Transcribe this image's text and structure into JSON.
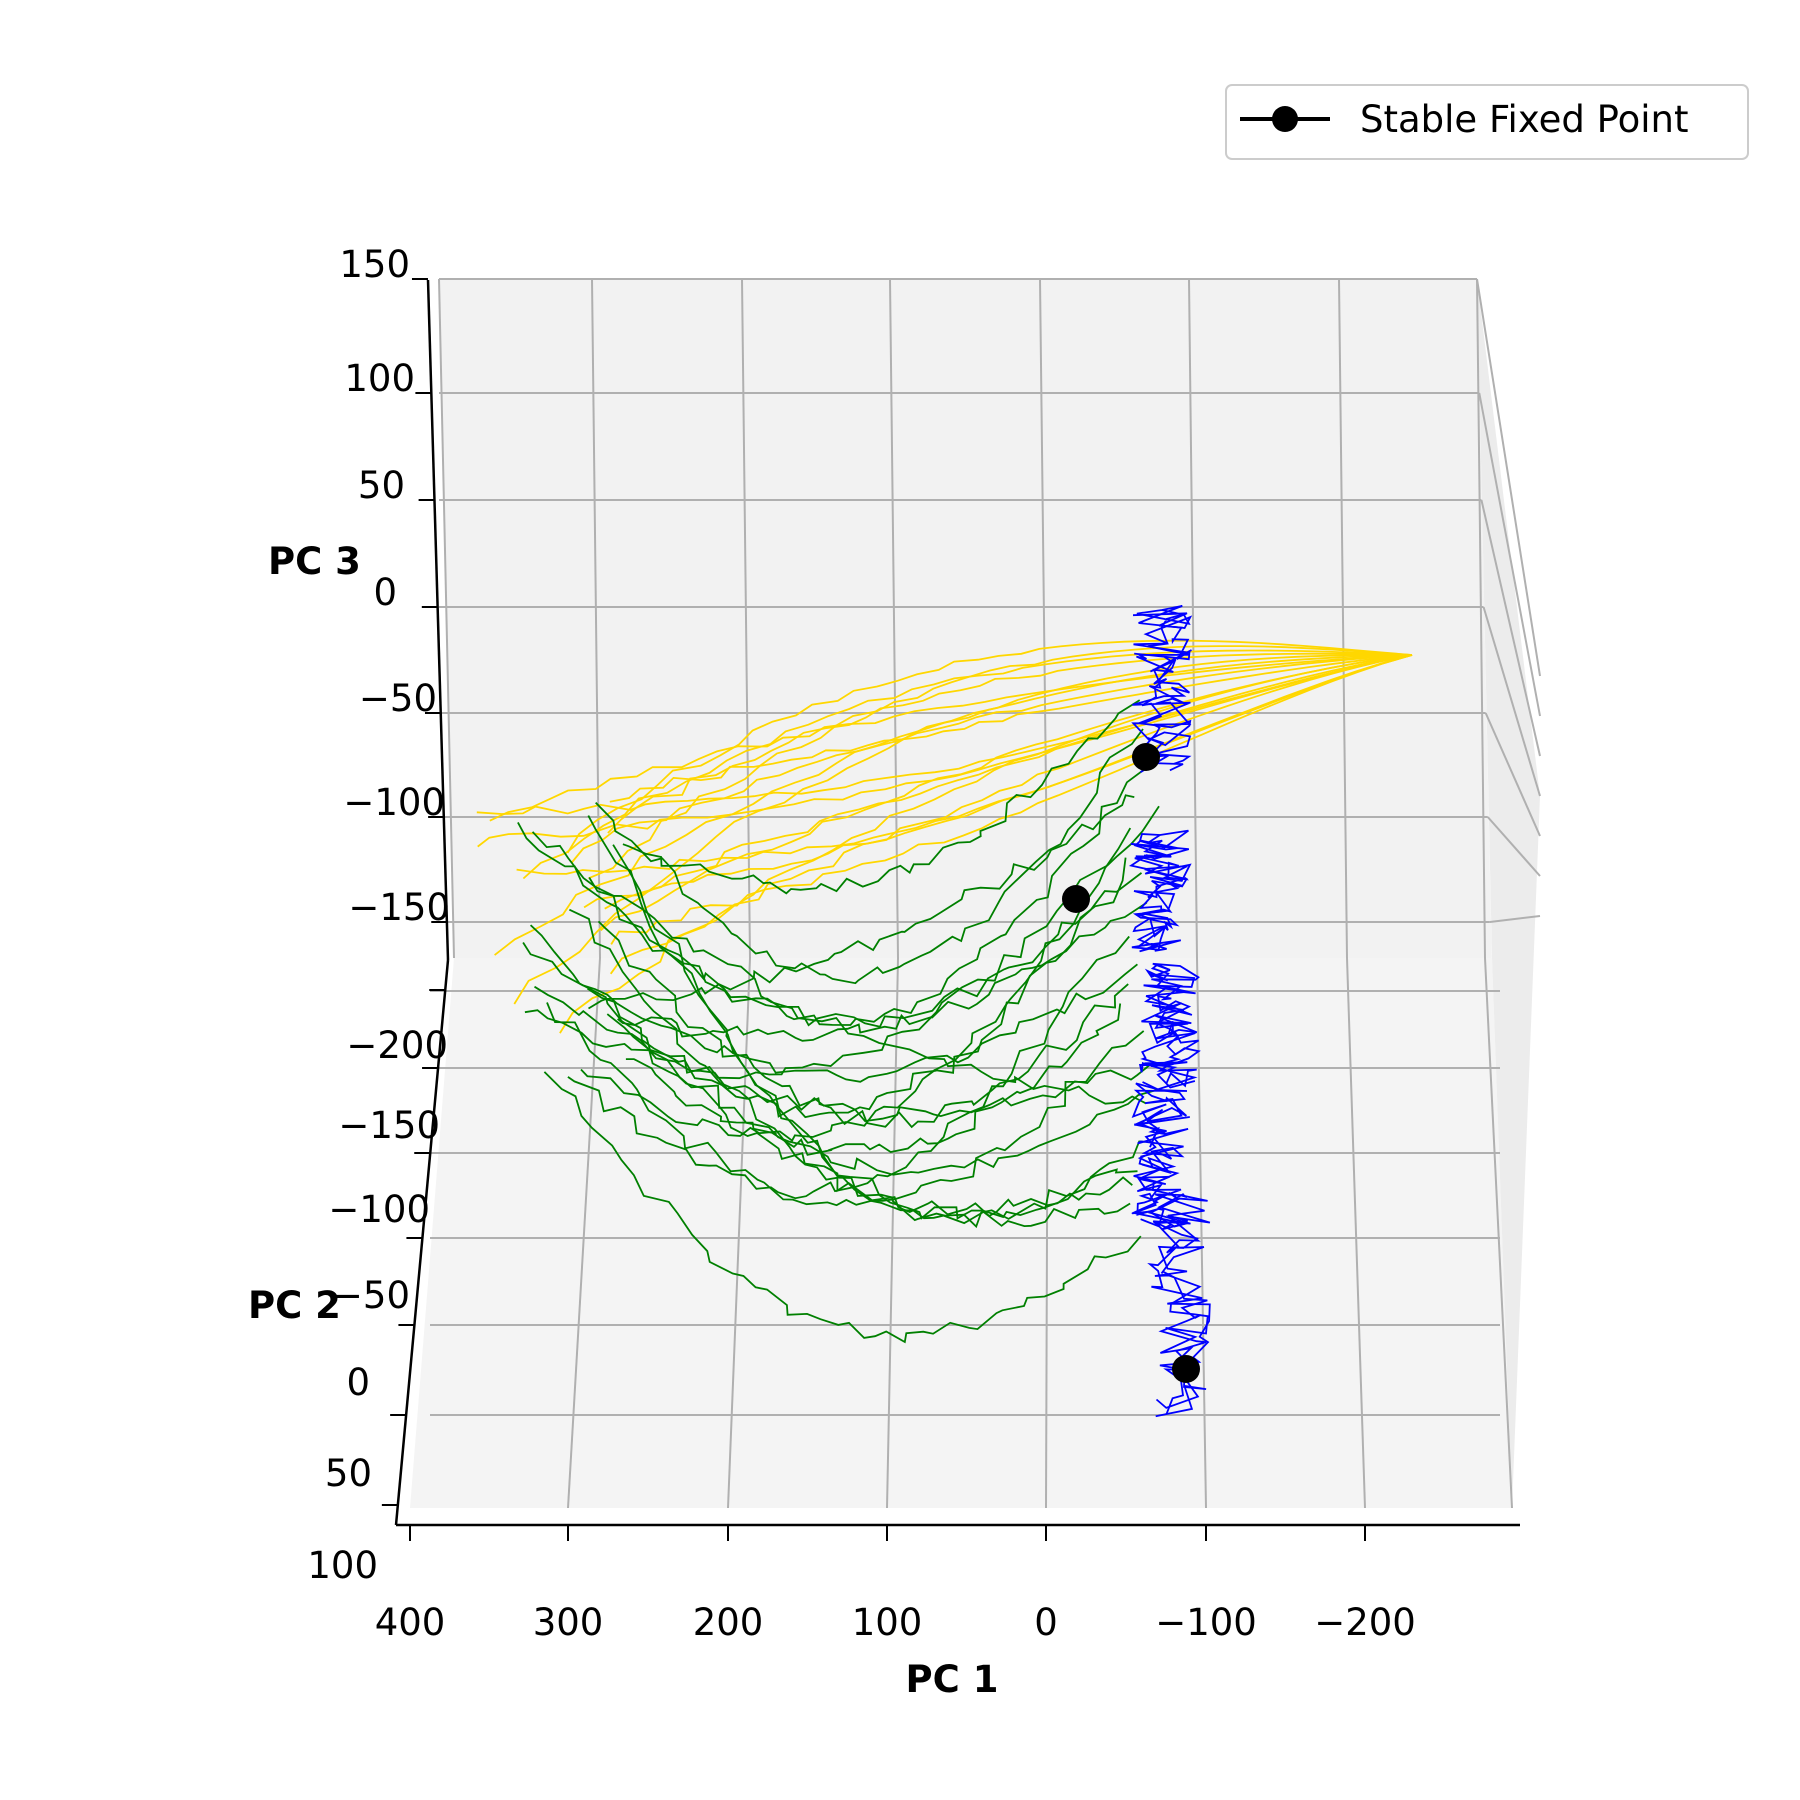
{
  "chart_data": {
    "type": "line",
    "projection": "3d",
    "axes": {
      "x": {
        "label": "PC 1",
        "ticks": [
          "400",
          "300",
          "200",
          "100",
          "0",
          "−100",
          "−200"
        ],
        "lim": [
          400,
          -280
        ]
      },
      "y": {
        "label": "PC 2",
        "ticks": [
          "−200",
          "−150",
          "−100",
          "−50",
          "0",
          "50",
          "100"
        ]
      },
      "z": {
        "label": "PC 3",
        "ticks": [
          "150",
          "100",
          "50",
          "0",
          "−50",
          "−100",
          "−150"
        ]
      }
    },
    "grid": true,
    "series_colors": [
      "#ffd700",
      "#008000",
      "#0000ff"
    ],
    "fixed_points": [
      {
        "pc1": -75,
        "pc2": -95,
        "pc3": -65
      },
      {
        "pc1": -20,
        "pc2": -75,
        "pc3": -145
      },
      {
        "pc1": -90,
        "pc2": 35,
        "pc3": -95
      }
    ],
    "legend": {
      "position": "top-right",
      "entries": [
        "Stable Fixed Point"
      ]
    }
  }
}
